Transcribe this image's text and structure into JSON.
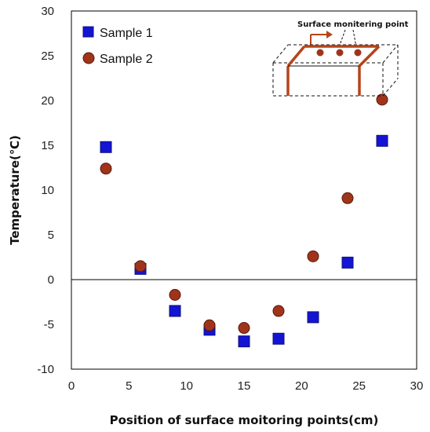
{
  "chart_data": {
    "type": "scatter",
    "title": "",
    "xlabel": "Position of surface moitoring points(cm)",
    "ylabel": "Temperature(℃)",
    "xlim": [
      0,
      30
    ],
    "ylim": [
      -10,
      30
    ],
    "xticks": [
      0,
      5,
      10,
      15,
      20,
      25,
      30
    ],
    "yticks": [
      -10,
      -5,
      0,
      5,
      10,
      15,
      20,
      25,
      30
    ],
    "zero_line": true,
    "grid": false,
    "legend_position": "top-left",
    "series": [
      {
        "name": "Sample 1",
        "marker": "square",
        "color": "#1414d4",
        "points": [
          [
            3,
            14.8
          ],
          [
            6,
            1.2
          ],
          [
            9,
            -3.5
          ],
          [
            12,
            -5.6
          ],
          [
            15,
            -6.9
          ],
          [
            18,
            -6.6
          ],
          [
            21,
            -4.2
          ],
          [
            24,
            1.9
          ],
          [
            27,
            15.5
          ]
        ]
      },
      {
        "name": "Sample 2",
        "marker": "circle",
        "color": "#a0341a",
        "points": [
          [
            3,
            12.4
          ],
          [
            6,
            1.5
          ],
          [
            9,
            -1.7
          ],
          [
            12,
            -5.1
          ],
          [
            15,
            -5.4
          ],
          [
            18,
            -3.5
          ],
          [
            21,
            2.6
          ],
          [
            24,
            9.1
          ],
          [
            27,
            20.1
          ]
        ]
      }
    ],
    "inset": {
      "label": "Surface monitering point",
      "frame_color": "#b5441a",
      "dot_color": "#a0341a"
    }
  }
}
